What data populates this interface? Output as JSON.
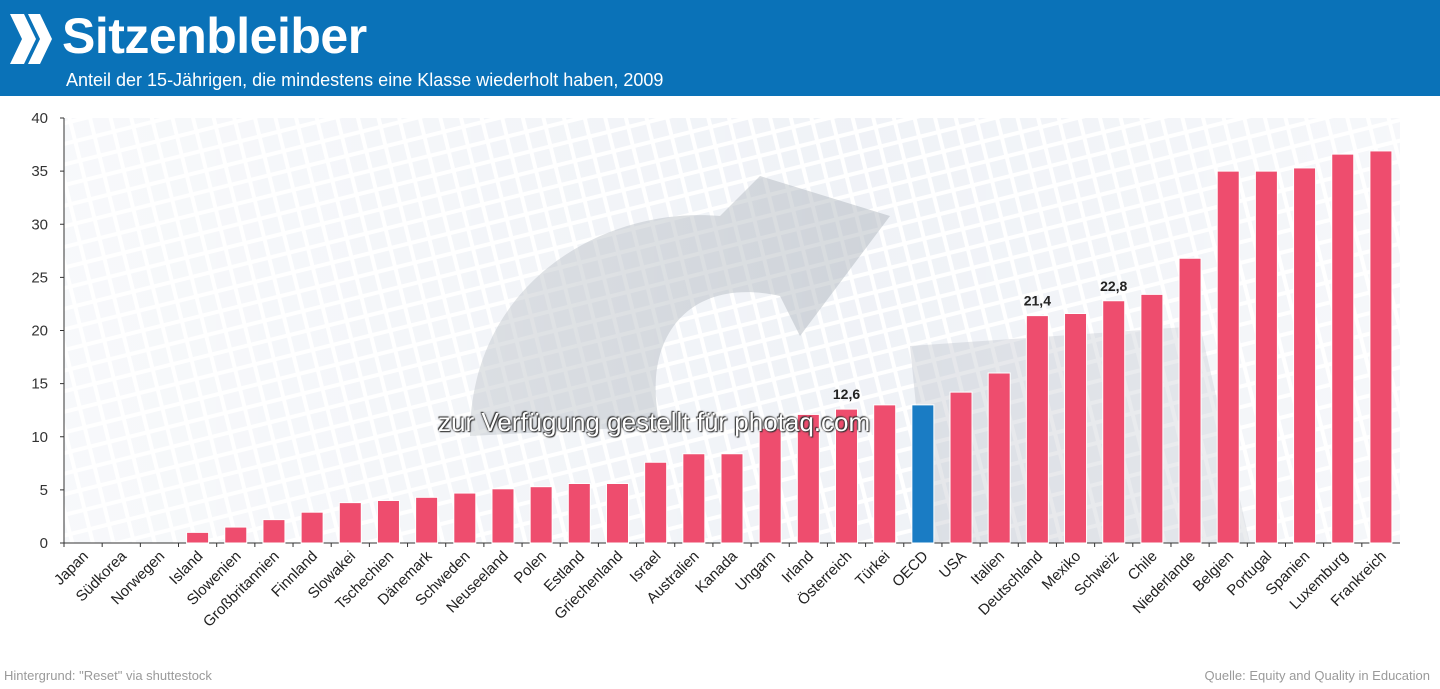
{
  "header": {
    "title": "Sitzenbleiber",
    "subtitle": "Anteil der 15-Jährigen, die mindestens eine Klasse wiederholt haben, 2009"
  },
  "footer": {
    "credit": "Hintergrund: \"Reset\" via shuttestock",
    "source": "Quelle: Equity and Quality in Education"
  },
  "watermark": "zur Verfügung gestellt für photaq.com",
  "colors": {
    "header": "#0a72b8",
    "bar": "#ee4d6e",
    "highlight": "#1a7cc4"
  },
  "chart_data": {
    "type": "bar",
    "title": "Sitzenbleiber",
    "subtitle": "Anteil der 15-Jährigen, die mindestens eine Klasse wiederholt haben, 2009",
    "categories": [
      "Japan",
      "Südkorea",
      "Norwegen",
      "Island",
      "Slowenien",
      "Großbritannien",
      "Finnland",
      "Slowakei",
      "Tschechien",
      "Dänemark",
      "Schweden",
      "Neuseeland",
      "Polen",
      "Estland",
      "Griechenland",
      "Israel",
      "Australien",
      "Kanada",
      "Ungarn",
      "Irland",
      "Österreich",
      "Türkei",
      "OECD",
      "USA",
      "Italien",
      "Deutschland",
      "Mexiko",
      "Schweiz",
      "Chile",
      "Niederlande",
      "Belgien",
      "Portugal",
      "Spanien",
      "Luxemburg",
      "Frankreich"
    ],
    "values": [
      0,
      0,
      0,
      1.0,
      1.5,
      2.2,
      2.9,
      3.8,
      4.0,
      4.3,
      4.7,
      5.1,
      5.3,
      5.6,
      5.6,
      7.6,
      8.4,
      8.4,
      10.8,
      12.1,
      12.6,
      13.0,
      13.0,
      14.2,
      16.0,
      21.4,
      21.6,
      22.8,
      23.4,
      26.8,
      35.0,
      35.0,
      35.3,
      36.6,
      36.9
    ],
    "highlight": "OECD",
    "data_labels": [
      {
        "category": "Österreich",
        "text": "12,6"
      },
      {
        "category": "Deutschland",
        "text": "21,4"
      },
      {
        "category": "Schweiz",
        "text": "22,8"
      }
    ],
    "yticks": [
      "0",
      "5",
      "10",
      "15",
      "20",
      "25",
      "30",
      "35",
      "40"
    ],
    "ylim": [
      0,
      40
    ],
    "xlabel": "",
    "ylabel": "",
    "grid": false,
    "legend": "none"
  }
}
